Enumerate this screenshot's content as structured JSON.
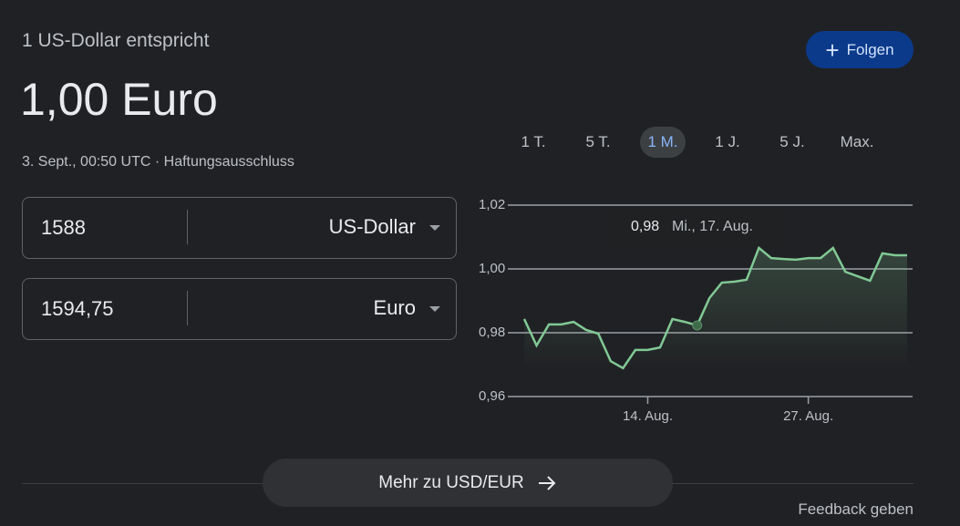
{
  "header": {
    "subtitle": "1 US-Dollar entspricht",
    "result": "1,00 Euro",
    "timestamp": "3. Sept., 00:50 UTC",
    "separator": "·",
    "disclaimer": "Haftungsausschluss",
    "follow": "Folgen"
  },
  "converter": [
    {
      "amount": "1588",
      "currency": "US-Dollar"
    },
    {
      "amount": "1594,75",
      "currency": "Euro"
    }
  ],
  "ranges": [
    "1 T.",
    "5 T.",
    "1 M.",
    "1 J.",
    "5 J.",
    "Max."
  ],
  "chart_data": {
    "type": "line",
    "categories": [
      null,
      null,
      null,
      null,
      null,
      null,
      null,
      null,
      null,
      null,
      "14. Aug.",
      null,
      null,
      null,
      null,
      null,
      null,
      null,
      null,
      null,
      null,
      null,
      null,
      "27. Aug.",
      null,
      null,
      null,
      null,
      null,
      null,
      null,
      null
    ],
    "series": [
      {
        "name": "USD/EUR",
        "color": "#81c995",
        "values": [
          0.9843,
          0.976,
          0.9826,
          0.9826,
          0.9834,
          0.9809,
          0.9797,
          0.9711,
          0.9689,
          0.9746,
          0.9746,
          0.9754,
          0.9843,
          0.9834,
          0.9823,
          0.9909,
          0.9957,
          0.996,
          0.9966,
          1.0066,
          1.0034,
          1.0031,
          1.0029,
          1.0034,
          1.0034,
          1.0066,
          0.9991,
          0.9977,
          0.9963,
          1.0049,
          1.0043,
          1.0043
        ]
      }
    ],
    "ylim": [
      0.96,
      1.02
    ],
    "yticks": [
      {
        "value": 0.96,
        "label": "0,96"
      },
      {
        "value": 0.98,
        "label": "0,98"
      },
      {
        "value": 1.0,
        "label": "1,00"
      },
      {
        "value": 1.02,
        "label": "1,02"
      }
    ],
    "grid": true,
    "tooltip": {
      "value": "0,98",
      "date": "Mi., 17. Aug."
    }
  },
  "footer": {
    "more": "Mehr zu USD/EUR",
    "feedback": "Feedback geben"
  }
}
